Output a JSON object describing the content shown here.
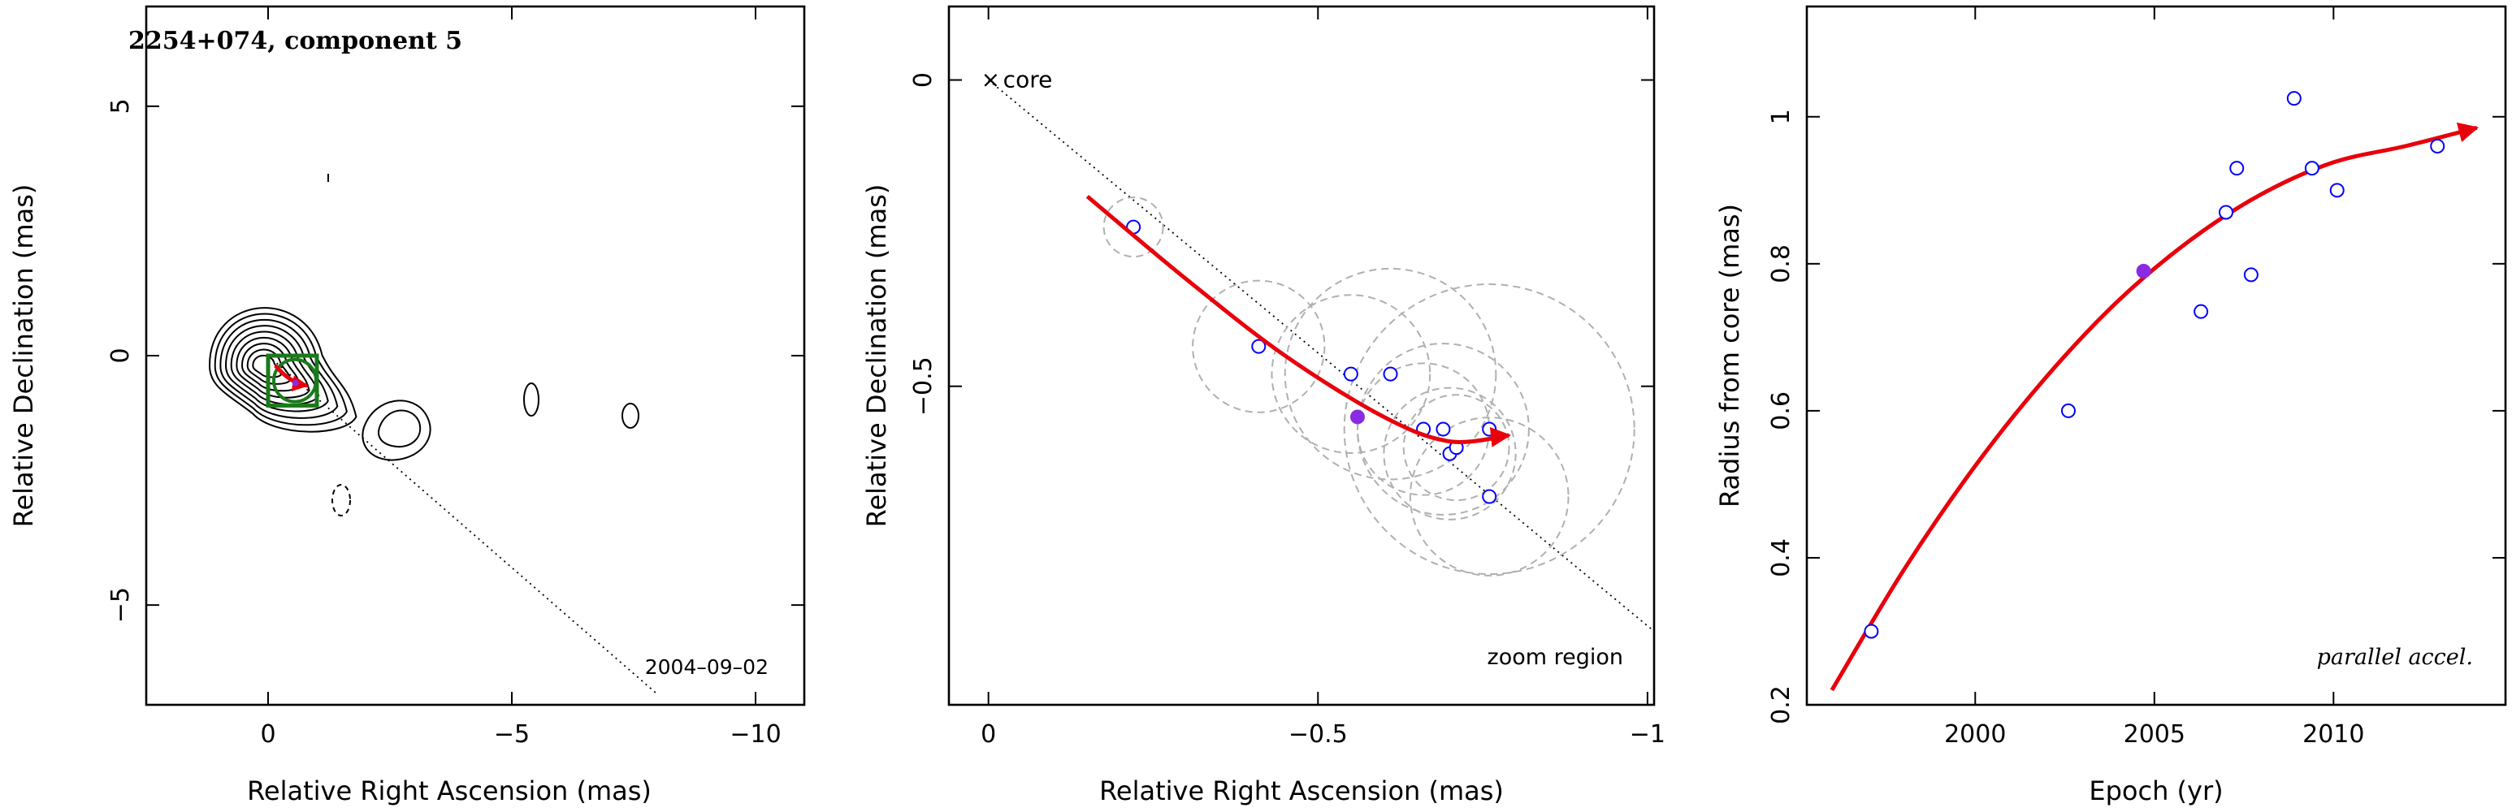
{
  "chart_data": [
    {
      "type": "scatter",
      "title": "2254+074, component 5",
      "xlabel": "Relative Right Ascension (mas)",
      "ylabel": "Relative Declination (mas)",
      "xlim": [
        2.5,
        -11
      ],
      "ylim": [
        -7,
        7
      ],
      "xticks": [
        0,
        -5,
        -10
      ],
      "xtick_labels": [
        "0",
        "−5",
        "−10"
      ],
      "yticks": [
        5,
        0,
        -5
      ],
      "ytick_labels": [
        "5",
        "0",
        "−5"
      ],
      "annotation": "2004–09–02",
      "contour_peak": [
        0.1,
        -0.2
      ],
      "contour_levels": 9,
      "zoom_box": {
        "x": [
          -1,
          0
        ],
        "y": [
          -1,
          0
        ]
      },
      "trajectory_line": {
        "x": [
          0,
          -8
        ],
        "y": [
          0,
          -6.8
        ]
      },
      "colors": {
        "contours": "#000000",
        "zoom_box": "#1a7a1a",
        "trajectory": "#e8000b",
        "epoch_marker": "#8a2be2"
      }
    },
    {
      "type": "scatter",
      "xlabel": "Relative Right Ascension (mas)",
      "ylabel": "Relative Declination (mas)",
      "xlim": [
        0.06,
        -1.01
      ],
      "ylim": [
        -1.02,
        0.12
      ],
      "xticks": [
        0,
        -0.5,
        -1
      ],
      "xtick_labels": [
        "0",
        "−0.5",
        "−1"
      ],
      "yticks": [
        0,
        -0.5
      ],
      "ytick_labels": [
        "0",
        "−0.5"
      ],
      "core_label": "core",
      "annotation": "zoom region",
      "points": [
        {
          "x": -0.22,
          "y": -0.24,
          "err": 0.045
        },
        {
          "x": -0.41,
          "y": -0.435,
          "err": 0.1
        },
        {
          "x": -0.55,
          "y": -0.48,
          "err": 0.12
        },
        {
          "x": -0.61,
          "y": -0.48,
          "err": 0.16
        },
        {
          "x": -0.66,
          "y": -0.57,
          "err": 0.1
        },
        {
          "x": -0.69,
          "y": -0.57,
          "err": 0.13
        },
        {
          "x": -0.7,
          "y": -0.61,
          "err": 0.1
        },
        {
          "x": -0.71,
          "y": -0.6,
          "err": 0.08
        },
        {
          "x": -0.76,
          "y": -0.57,
          "err": 0.22
        },
        {
          "x": -0.76,
          "y": -0.68,
          "err": 0.12
        }
      ],
      "highlight_point": {
        "x": -0.56,
        "y": -0.55
      },
      "fit_curve": {
        "x": [
          -0.15,
          -0.3,
          -0.45,
          -0.6,
          -0.7,
          -0.79
        ],
        "y": [
          -0.19,
          -0.325,
          -0.45,
          -0.55,
          -0.59,
          -0.58
        ]
      },
      "direction_line": {
        "x": [
          0,
          -1.01
        ],
        "y": [
          0,
          -0.9
        ]
      },
      "colors": {
        "points": "#0000ff",
        "error_circles": "#b0b0b0",
        "fit": "#e8000b",
        "highlight": "#8a2be2"
      }
    },
    {
      "type": "scatter",
      "xlabel": "Epoch (yr)",
      "ylabel": "Radius from core (mas)",
      "xlim": [
        1995.3,
        2014.8
      ],
      "ylim": [
        0.2,
        1.15
      ],
      "xticks": [
        2000,
        2005,
        2010
      ],
      "xtick_labels": [
        "2000",
        "2005",
        "2010"
      ],
      "yticks": [
        0.2,
        0.4,
        0.6,
        0.8,
        1
      ],
      "ytick_labels": [
        "0.2",
        "0.4",
        "0.6",
        "0.8",
        "1"
      ],
      "annotation": "parallel accel.",
      "points": [
        {
          "x": 1997.1,
          "y": 0.3
        },
        {
          "x": 2002.6,
          "y": 0.6
        },
        {
          "x": 2006.3,
          "y": 0.735
        },
        {
          "x": 2007.0,
          "y": 0.87
        },
        {
          "x": 2007.3,
          "y": 0.93
        },
        {
          "x": 2007.7,
          "y": 0.785
        },
        {
          "x": 2008.9,
          "y": 1.025
        },
        {
          "x": 2009.4,
          "y": 0.93
        },
        {
          "x": 2010.1,
          "y": 0.9
        },
        {
          "x": 2012.9,
          "y": 0.96
        }
      ],
      "highlight_point": {
        "x": 2004.7,
        "y": 0.79
      },
      "fit_curve": {
        "x": [
          1996.0,
          1998.0,
          2000.0,
          2002.0,
          2004.0,
          2006.0,
          2008.0,
          2010.0,
          2012.0,
          2014.0
        ],
        "y": [
          0.22,
          0.383,
          0.525,
          0.647,
          0.75,
          0.832,
          0.895,
          0.938,
          0.96,
          0.985
        ]
      },
      "colors": {
        "points": "#0000ff",
        "fit": "#e8000b",
        "highlight": "#8a2be2"
      }
    }
  ]
}
